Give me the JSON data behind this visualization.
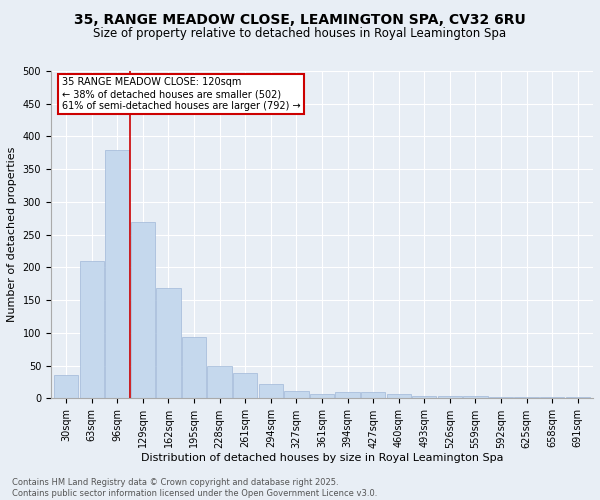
{
  "title": "35, RANGE MEADOW CLOSE, LEAMINGTON SPA, CV32 6RU",
  "subtitle": "Size of property relative to detached houses in Royal Leamington Spa",
  "xlabel": "Distribution of detached houses by size in Royal Leamington Spa",
  "ylabel": "Number of detached properties",
  "categories": [
    "30sqm",
    "63sqm",
    "96sqm",
    "129sqm",
    "162sqm",
    "195sqm",
    "228sqm",
    "261sqm",
    "294sqm",
    "327sqm",
    "361sqm",
    "394sqm",
    "427sqm",
    "460sqm",
    "493sqm",
    "526sqm",
    "559sqm",
    "592sqm",
    "625sqm",
    "658sqm",
    "691sqm"
  ],
  "values": [
    35,
    210,
    380,
    270,
    168,
    93,
    50,
    39,
    22,
    12,
    7,
    10,
    10,
    7,
    3,
    4,
    4,
    2,
    2,
    2,
    2
  ],
  "bar_color": "#c5d8ed",
  "bar_edge_color": "#a0b8d8",
  "vline_x": 2.5,
  "vline_color": "#cc0000",
  "annotation_text": "35 RANGE MEADOW CLOSE: 120sqm\n← 38% of detached houses are smaller (502)\n61% of semi-detached houses are larger (792) →",
  "annotation_box_color": "#cc0000",
  "annotation_text_color": "#000000",
  "ylim": [
    0,
    500
  ],
  "yticks": [
    0,
    50,
    100,
    150,
    200,
    250,
    300,
    350,
    400,
    450,
    500
  ],
  "background_color": "#e8eef5",
  "plot_background_color": "#e8eef5",
  "footer": "Contains HM Land Registry data © Crown copyright and database right 2025.\nContains public sector information licensed under the Open Government Licence v3.0.",
  "title_fontsize": 10,
  "subtitle_fontsize": 8.5,
  "xlabel_fontsize": 8,
  "ylabel_fontsize": 8,
  "tick_fontsize": 7,
  "footer_fontsize": 6,
  "annot_fontsize": 7
}
